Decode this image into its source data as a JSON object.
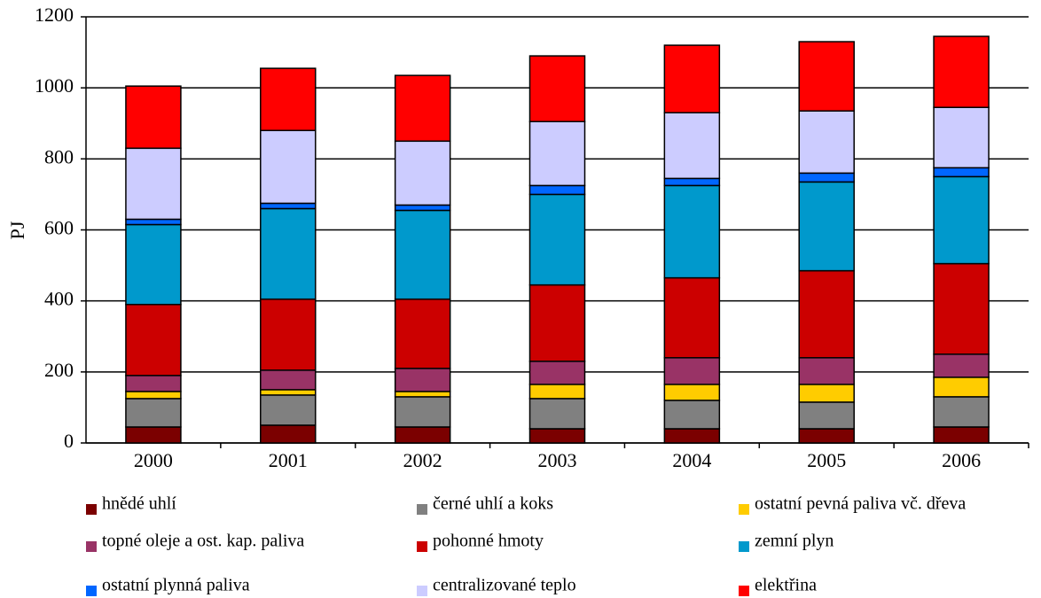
{
  "chart_data": {
    "type": "stacked_bar",
    "ylabel": "PJ",
    "categories": [
      "2000",
      "2001",
      "2002",
      "2003",
      "2004",
      "2005",
      "2006"
    ],
    "series": [
      {
        "name": "hnědé uhlí",
        "color": "#7b0000",
        "values": [
          45,
          50,
          45,
          40,
          40,
          40,
          45
        ]
      },
      {
        "name": "černé uhlí a koks",
        "color": "#808080",
        "values": [
          80,
          85,
          85,
          85,
          80,
          75,
          85
        ]
      },
      {
        "name": "ostatní pevná paliva vč. dřeva",
        "color": "#ffcc00",
        "values": [
          20,
          15,
          15,
          40,
          45,
          50,
          55
        ]
      },
      {
        "name": "topné oleje a ost. kap. paliva",
        "color": "#993366",
        "values": [
          45,
          55,
          65,
          65,
          75,
          75,
          65
        ]
      },
      {
        "name": "pohonné hmoty",
        "color": "#cc0000",
        "values": [
          200,
          200,
          195,
          215,
          225,
          245,
          255
        ]
      },
      {
        "name": "zemní plyn",
        "color": "#0099cc",
        "values": [
          225,
          255,
          250,
          255,
          260,
          250,
          245
        ]
      },
      {
        "name": "ostatní plynná paliva",
        "color": "#0066ff",
        "values": [
          15,
          15,
          15,
          25,
          20,
          25,
          25
        ]
      },
      {
        "name": "centralizované teplo",
        "color": "#ccccff",
        "values": [
          200,
          205,
          180,
          180,
          185,
          175,
          170
        ]
      },
      {
        "name": "elektřina",
        "color": "#ff0000",
        "values": [
          175,
          175,
          185,
          185,
          190,
          195,
          200
        ]
      }
    ],
    "ylim": [
      0,
      1200
    ],
    "yticks": [
      0,
      200,
      400,
      600,
      800,
      1000,
      1200
    ],
    "grid": true
  }
}
